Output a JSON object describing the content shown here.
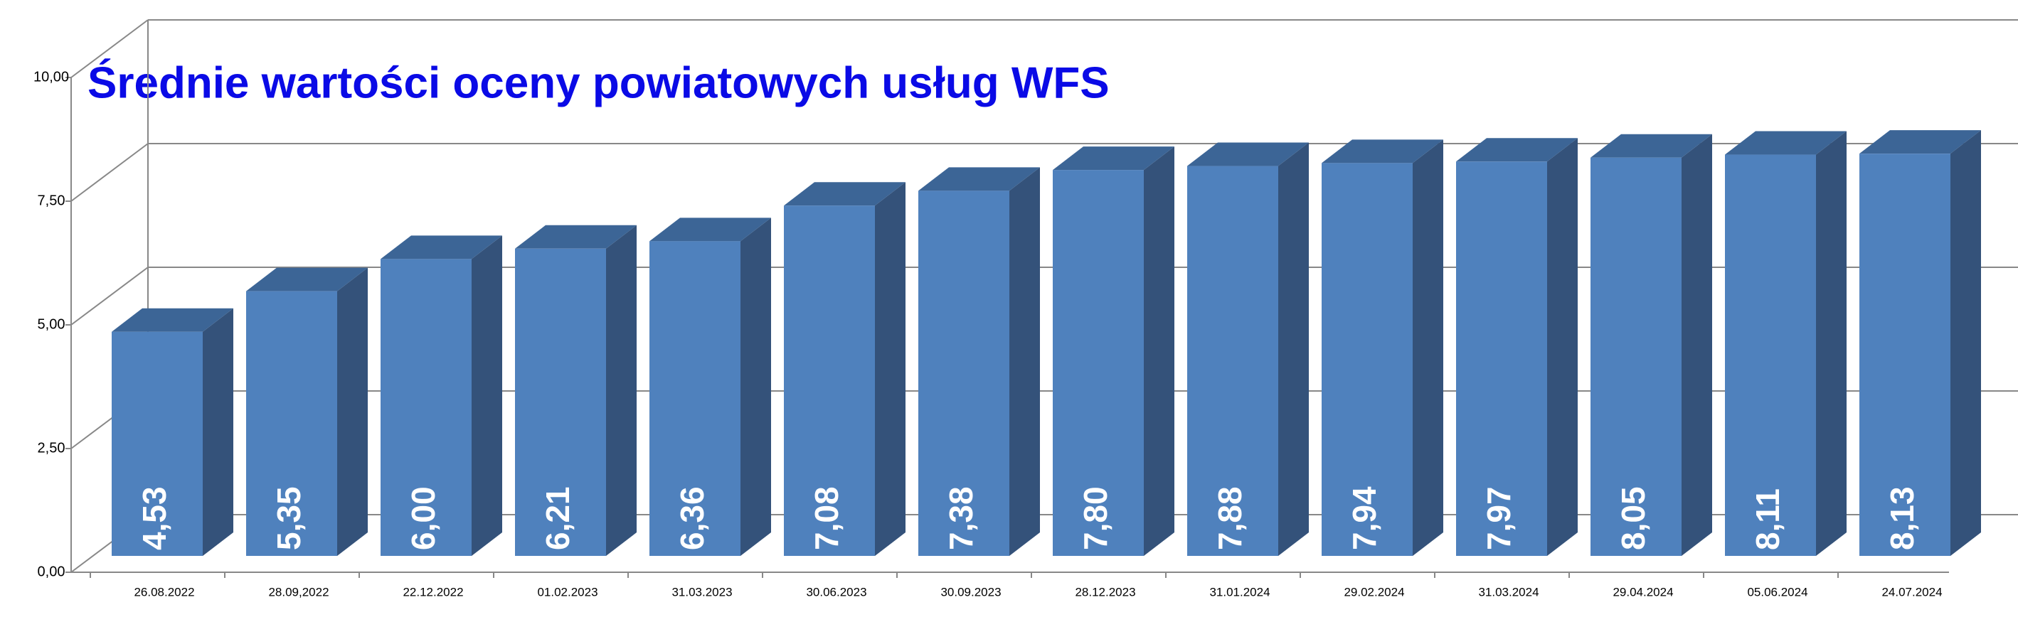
{
  "chart_data": {
    "type": "bar3d",
    "title": "Średnie wartości oceny powiatowych usług WFS",
    "categories": [
      "26.08.2022",
      "28.09,2022",
      "22.12.2022",
      "01.02.2023",
      "31.03.2023",
      "30.06.2023",
      "30.09.2023",
      "28.12.2023",
      "31.01.2024",
      "29.02.2024",
      "31.03.2024",
      "29.04.2024",
      "05.06.2024",
      "24.07.2024"
    ],
    "values": [
      4.53,
      5.35,
      6.0,
      6.21,
      6.36,
      7.08,
      7.38,
      7.8,
      7.88,
      7.94,
      7.97,
      8.05,
      8.11,
      8.13
    ],
    "value_labels": [
      "4,53",
      "5,35",
      "6,00",
      "6,21",
      "6,36",
      "7,08",
      "7,38",
      "7,80",
      "7,88",
      "7,94",
      "7,97",
      "8,05",
      "8,11",
      "8,13"
    ],
    "color": "#4f81bd",
    "ylim": [
      0,
      10
    ],
    "yticks": [
      {
        "value": 0,
        "label": "0,00"
      },
      {
        "value": 2.5,
        "label": "2,50"
      },
      {
        "value": 5,
        "label": "5,00"
      },
      {
        "value": 7.5,
        "label": "7,50"
      },
      {
        "value": 10,
        "label": "10,00"
      }
    ],
    "grid": true
  }
}
